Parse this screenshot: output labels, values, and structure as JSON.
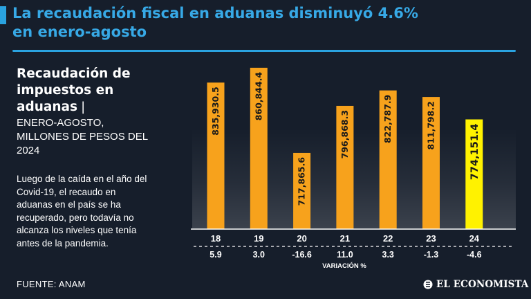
{
  "header": {
    "title_line1": "La recaudación fiscal en aduanas disminuyó 4.6%",
    "title_line2": "en enero-agosto"
  },
  "subtitle": {
    "bold": "Recaudación de impuestos en aduanas",
    "separator": "|",
    "light": "Enero-agosto, millones de pesos del 2024"
  },
  "note": "Luego de la caída en el año del Covid-19, el recaudo en aduanas en el país se ha recuperado, pero todavía no alcanza los niveles que tenía antes de la pandemia.",
  "footer": {
    "source": "FUENTE:  ANAM",
    "brand": "EL ECONOMISTA"
  },
  "colors": {
    "background": "#161e2b",
    "accent": "#2aa3e0",
    "bar": "#f7a21c",
    "bar_highlight": "#fff200",
    "text": "#ffffff"
  },
  "chart_data": {
    "type": "bar",
    "title": "Recaudación de impuestos en aduanas",
    "ylabel": "Millones de pesos del 2024",
    "xlabel": "",
    "categories": [
      "18",
      "19",
      "20",
      "21",
      "22",
      "23",
      "24"
    ],
    "values": [
      835930.5,
      860844.4,
      717865.6,
      796868.3,
      822787.9,
      811798.2,
      774151.4
    ],
    "value_labels": [
      "835,930.5",
      "860,844.4",
      "717,865.6",
      "796,868.3",
      "822,787.9",
      "811,798.2",
      "774,151.4"
    ],
    "highlight_index": 6,
    "variation_label": "VARIACIÓN %",
    "variation": [
      "5.9",
      "3.0",
      "-16.6",
      "11.0",
      "3.3",
      "-1.3",
      "-4.6"
    ],
    "ylim": [
      590000,
      870000
    ],
    "grid": false
  }
}
